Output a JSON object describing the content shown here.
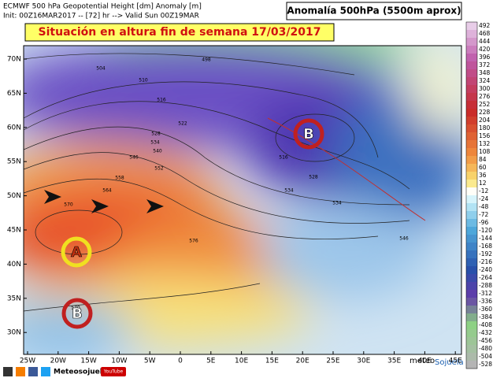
{
  "header": {
    "line1": "ECMWF 500 hPa Geopotential Height [dm] Anomaly [m]",
    "line2": "Init: 00Z16MAR2017 -- [72] hr --> Valid Sun 00Z19MAR",
    "right_title": "Anomalía 500hPa (5500m aprox)"
  },
  "title": "Situación en altura fin de semana 17/03/2017",
  "map": {
    "lat_labels": [
      "70N",
      "65N",
      "60N",
      "55N",
      "50N",
      "45N",
      "40N",
      "35N",
      "30N"
    ],
    "lon_labels": [
      "25W",
      "20W",
      "15W",
      "10W",
      "5W",
      "0",
      "5E",
      "10E",
      "15E",
      "20E",
      "25E",
      "30E",
      "35E",
      "40E",
      "45E"
    ],
    "pressure_centers": [
      "A",
      "B",
      "B"
    ],
    "contour_labels": [
      "498",
      "504",
      "510",
      "516",
      "522",
      "528",
      "534",
      "540",
      "546",
      "552",
      "558",
      "564",
      "570",
      "576",
      "570",
      "534",
      "534",
      "546",
      "516",
      "528"
    ]
  },
  "colorbar": {
    "labels": [
      "492",
      "468",
      "444",
      "420",
      "396",
      "372",
      "348",
      "324",
      "300",
      "276",
      "252",
      "228",
      "204",
      "180",
      "156",
      "132",
      "108",
      "84",
      "60",
      "36",
      "12",
      "-12",
      "-24",
      "-48",
      "-72",
      "-96",
      "-120",
      "-144",
      "-168",
      "-192",
      "-216",
      "-240",
      "-264",
      "-288",
      "-312",
      "-336",
      "-360",
      "-384",
      "-408",
      "-432",
      "-456",
      "-480",
      "-504",
      "-528"
    ]
  },
  "footer": {
    "brand": "Meteosojuela",
    "logo_a": "meteo",
    "logo_b": "Sojuela",
    "video": "YouTube"
  }
}
